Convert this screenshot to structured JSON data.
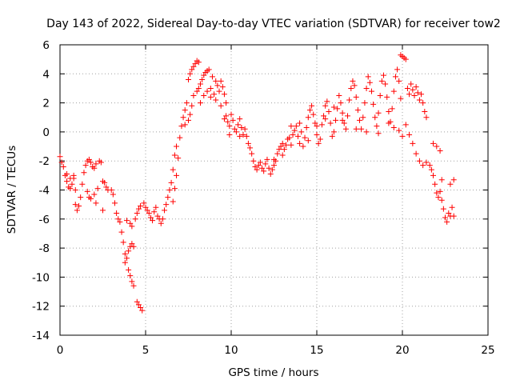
{
  "chart_data": {
    "type": "scatter",
    "title": "Day 143 of 2022, Sidereal Day-to-day VTEC variation (SDTVAR) for receiver tow2",
    "xlabel": "GPS time / hours",
    "ylabel": "SDTVAR / TECUs",
    "xlim": [
      0,
      25
    ],
    "ylim": [
      -14,
      6
    ],
    "xticks": [
      0,
      5,
      10,
      15,
      20,
      25
    ],
    "yticks": [
      -14,
      -12,
      -10,
      -8,
      -6,
      -4,
      -2,
      0,
      2,
      4,
      6
    ],
    "grid": true,
    "marker": "plus",
    "color": "#ff0000",
    "series": [
      {
        "name": "SDTVAR",
        "points": [
          [
            0.0,
            -1.7
          ],
          [
            0.1,
            -2.1
          ],
          [
            0.2,
            -2.4
          ],
          [
            0.3,
            -3.0
          ],
          [
            0.4,
            -3.4
          ],
          [
            0.5,
            -3.8
          ],
          [
            0.6,
            -3.9
          ],
          [
            0.7,
            -3.6
          ],
          [
            0.8,
            -3.2
          ],
          [
            0.9,
            -4.0
          ],
          [
            0.4,
            -2.9
          ],
          [
            0.6,
            -3.2
          ],
          [
            0.8,
            -3.0
          ],
          [
            0.9,
            -5.0
          ],
          [
            1.0,
            -5.4
          ],
          [
            1.1,
            -5.1
          ],
          [
            1.2,
            -4.5
          ],
          [
            1.3,
            -3.6
          ],
          [
            1.4,
            -2.8
          ],
          [
            1.5,
            -2.3
          ],
          [
            1.6,
            -2.0
          ],
          [
            1.7,
            -1.9
          ],
          [
            1.8,
            -2.1
          ],
          [
            1.9,
            -2.4
          ],
          [
            1.6,
            -4.1
          ],
          [
            1.7,
            -4.5
          ],
          [
            1.8,
            -4.6
          ],
          [
            2.0,
            -4.3
          ],
          [
            2.1,
            -4.9
          ],
          [
            2.2,
            -3.9
          ],
          [
            2.0,
            -2.5
          ],
          [
            2.1,
            -2.2
          ],
          [
            2.3,
            -2.0
          ],
          [
            2.4,
            -2.1
          ],
          [
            2.5,
            -3.4
          ],
          [
            2.6,
            -3.5
          ],
          [
            2.7,
            -3.8
          ],
          [
            2.8,
            -4.0
          ],
          [
            2.5,
            -5.4
          ],
          [
            3.0,
            -4.0
          ],
          [
            3.1,
            -4.3
          ],
          [
            3.2,
            -4.9
          ],
          [
            3.3,
            -5.6
          ],
          [
            3.4,
            -6.0
          ],
          [
            3.5,
            -6.2
          ],
          [
            3.6,
            -6.9
          ],
          [
            3.7,
            -7.6
          ],
          [
            3.8,
            -8.4
          ],
          [
            3.8,
            -9.0
          ],
          [
            3.9,
            -8.7
          ],
          [
            4.0,
            -8.2
          ],
          [
            4.1,
            -7.9
          ],
          [
            4.2,
            -7.7
          ],
          [
            4.3,
            -7.9
          ],
          [
            3.9,
            -6.1
          ],
          [
            4.1,
            -6.3
          ],
          [
            4.2,
            -6.5
          ],
          [
            4.4,
            -6.0
          ],
          [
            4.0,
            -9.5
          ],
          [
            4.1,
            -9.9
          ],
          [
            4.2,
            -10.3
          ],
          [
            4.3,
            -10.6
          ],
          [
            4.5,
            -11.7
          ],
          [
            4.6,
            -11.9
          ],
          [
            4.7,
            -12.1
          ],
          [
            4.8,
            -12.3
          ],
          [
            4.5,
            -5.6
          ],
          [
            4.6,
            -5.3
          ],
          [
            4.7,
            -5.1
          ],
          [
            4.9,
            -4.9
          ],
          [
            5.0,
            -5.2
          ],
          [
            5.1,
            -5.4
          ],
          [
            5.2,
            -5.6
          ],
          [
            5.3,
            -5.9
          ],
          [
            5.4,
            -6.1
          ],
          [
            5.5,
            -5.5
          ],
          [
            5.6,
            -5.2
          ],
          [
            5.7,
            -5.8
          ],
          [
            5.8,
            -6.0
          ],
          [
            5.9,
            -6.3
          ],
          [
            6.0,
            -6.0
          ],
          [
            6.1,
            -5.4
          ],
          [
            6.2,
            -5.0
          ],
          [
            6.3,
            -4.5
          ],
          [
            6.4,
            -4.0
          ],
          [
            6.5,
            -3.5
          ],
          [
            6.6,
            -2.6
          ],
          [
            6.7,
            -1.6
          ],
          [
            6.8,
            -1.0
          ],
          [
            6.9,
            -1.8
          ],
          [
            6.6,
            -4.8
          ],
          [
            6.7,
            -3.9
          ],
          [
            6.8,
            -3.0
          ],
          [
            7.0,
            -0.4
          ],
          [
            7.1,
            0.4
          ],
          [
            7.2,
            1.0
          ],
          [
            7.3,
            1.5
          ],
          [
            7.4,
            2.0
          ],
          [
            7.3,
            0.5
          ],
          [
            7.5,
            0.8
          ],
          [
            7.6,
            1.2
          ],
          [
            7.7,
            1.8
          ],
          [
            7.8,
            2.5
          ],
          [
            7.5,
            3.6
          ],
          [
            7.6,
            4.0
          ],
          [
            7.7,
            4.3
          ],
          [
            7.8,
            4.5
          ],
          [
            7.9,
            4.7
          ],
          [
            8.0,
            4.9
          ],
          [
            8.1,
            4.8
          ],
          [
            8.0,
            2.8
          ],
          [
            8.1,
            3.0
          ],
          [
            8.2,
            3.3
          ],
          [
            8.3,
            3.6
          ],
          [
            8.4,
            3.9
          ],
          [
            8.5,
            4.1
          ],
          [
            8.6,
            4.2
          ],
          [
            8.7,
            4.3
          ],
          [
            8.2,
            2.0
          ],
          [
            8.4,
            2.5
          ],
          [
            8.6,
            2.8
          ],
          [
            8.8,
            3.0
          ],
          [
            9.0,
            2.6
          ],
          [
            9.1,
            2.2
          ],
          [
            8.9,
            3.8
          ],
          [
            9.1,
            3.5
          ],
          [
            9.2,
            3.2
          ],
          [
            9.3,
            2.8
          ],
          [
            9.4,
            3.5
          ],
          [
            9.5,
            3.1
          ],
          [
            9.6,
            2.6
          ],
          [
            9.7,
            2.0
          ],
          [
            9.6,
            0.9
          ],
          [
            9.7,
            1.1
          ],
          [
            9.8,
            0.7
          ],
          [
            9.9,
            0.4
          ],
          [
            10.0,
            1.2
          ],
          [
            10.1,
            0.8
          ],
          [
            10.2,
            0.2
          ],
          [
            10.3,
            0.0
          ],
          [
            10.4,
            0.5
          ],
          [
            10.5,
            0.9
          ],
          [
            10.6,
            0.3
          ],
          [
            10.7,
            -0.2
          ],
          [
            10.8,
            0.2
          ],
          [
            10.9,
            -0.3
          ],
          [
            11.0,
            -0.8
          ],
          [
            11.1,
            -1.1
          ],
          [
            11.2,
            -1.5
          ],
          [
            11.3,
            -2.0
          ],
          [
            11.4,
            -2.4
          ],
          [
            11.5,
            -2.6
          ],
          [
            11.6,
            -2.3
          ],
          [
            11.7,
            -2.1
          ],
          [
            11.8,
            -2.5
          ],
          [
            11.9,
            -2.7
          ],
          [
            12.0,
            -2.2
          ],
          [
            12.1,
            -1.9
          ],
          [
            12.2,
            -2.5
          ],
          [
            12.3,
            -2.9
          ],
          [
            12.4,
            -2.6
          ],
          [
            12.5,
            -2.3
          ],
          [
            12.6,
            -2.0
          ],
          [
            12.7,
            -1.5
          ],
          [
            12.8,
            -1.2
          ],
          [
            12.9,
            -1.0
          ],
          [
            13.0,
            -0.8
          ],
          [
            13.1,
            -1.2
          ],
          [
            13.2,
            -0.9
          ],
          [
            13.3,
            -0.5
          ],
          [
            13.4,
            -0.4
          ],
          [
            13.5,
            -0.9
          ],
          [
            13.6,
            -0.2
          ],
          [
            13.7,
            0.1
          ],
          [
            13.8,
            0.4
          ],
          [
            13.9,
            -0.3
          ],
          [
            14.0,
            -0.8
          ],
          [
            14.1,
            0.0
          ],
          [
            14.2,
            -1.0
          ],
          [
            14.3,
            -0.4
          ],
          [
            14.4,
            0.3
          ],
          [
            14.5,
            1.0
          ],
          [
            14.6,
            1.5
          ],
          [
            14.7,
            1.8
          ],
          [
            14.8,
            1.2
          ],
          [
            14.9,
            0.6
          ],
          [
            15.0,
            -0.2
          ],
          [
            15.1,
            -0.8
          ],
          [
            15.2,
            -0.5
          ],
          [
            15.3,
            0.5
          ],
          [
            15.4,
            1.1
          ],
          [
            15.5,
            1.8
          ],
          [
            15.6,
            2.1
          ],
          [
            15.7,
            1.4
          ],
          [
            15.8,
            0.6
          ],
          [
            15.9,
            -0.3
          ],
          [
            16.0,
            0.0
          ],
          [
            16.1,
            0.8
          ],
          [
            16.2,
            1.6
          ],
          [
            16.3,
            2.5
          ],
          [
            16.4,
            2.0
          ],
          [
            16.5,
            1.3
          ],
          [
            16.6,
            0.6
          ],
          [
            16.7,
            0.2
          ],
          [
            16.8,
            1.1
          ],
          [
            16.9,
            2.2
          ],
          [
            17.0,
            3.0
          ],
          [
            17.1,
            3.5
          ],
          [
            17.2,
            3.2
          ],
          [
            17.3,
            2.4
          ],
          [
            17.4,
            1.5
          ],
          [
            17.5,
            0.8
          ],
          [
            17.6,
            0.2
          ],
          [
            17.7,
            1.0
          ],
          [
            17.8,
            2.0
          ],
          [
            17.9,
            3.0
          ],
          [
            18.0,
            3.8
          ],
          [
            18.1,
            3.4
          ],
          [
            18.2,
            2.8
          ],
          [
            18.3,
            1.9
          ],
          [
            18.4,
            1.0
          ],
          [
            18.5,
            0.4
          ],
          [
            18.6,
            1.3
          ],
          [
            18.7,
            2.5
          ],
          [
            18.8,
            3.5
          ],
          [
            18.9,
            3.9
          ],
          [
            19.0,
            3.3
          ],
          [
            19.1,
            2.4
          ],
          [
            19.2,
            1.4
          ],
          [
            19.3,
            0.7
          ],
          [
            19.4,
            1.6
          ],
          [
            19.5,
            2.8
          ],
          [
            19.6,
            3.8
          ],
          [
            19.7,
            4.3
          ],
          [
            19.8,
            3.5
          ],
          [
            19.9,
            2.3
          ],
          [
            20.0,
            5.2
          ],
          [
            20.1,
            5.1
          ],
          [
            20.2,
            5.0
          ],
          [
            19.9,
            5.3
          ],
          [
            20.3,
            3.0
          ],
          [
            20.4,
            2.6
          ],
          [
            20.5,
            3.3
          ],
          [
            20.6,
            2.9
          ],
          [
            20.7,
            2.5
          ],
          [
            20.8,
            3.1
          ],
          [
            20.9,
            2.7
          ],
          [
            21.0,
            2.2
          ],
          [
            21.1,
            2.6
          ],
          [
            21.2,
            2.0
          ],
          [
            21.3,
            1.4
          ],
          [
            21.4,
            1.0
          ],
          [
            20.2,
            0.5
          ],
          [
            20.4,
            -0.2
          ],
          [
            20.6,
            -0.8
          ],
          [
            20.8,
            -1.5
          ],
          [
            21.0,
            -2.0
          ],
          [
            21.2,
            -2.3
          ],
          [
            21.4,
            -2.1
          ],
          [
            21.6,
            -2.3
          ],
          [
            21.7,
            -2.6
          ],
          [
            21.8,
            -3.0
          ],
          [
            21.9,
            -3.6
          ],
          [
            22.0,
            -4.2
          ],
          [
            22.1,
            -4.5
          ],
          [
            22.2,
            -4.1
          ],
          [
            22.3,
            -3.3
          ],
          [
            21.8,
            -0.8
          ],
          [
            22.0,
            -1.0
          ],
          [
            22.2,
            -1.3
          ],
          [
            22.3,
            -4.7
          ],
          [
            22.4,
            -5.3
          ],
          [
            22.5,
            -5.9
          ],
          [
            22.6,
            -6.2
          ],
          [
            22.7,
            -5.6
          ],
          [
            22.8,
            -5.8
          ],
          [
            22.9,
            -5.2
          ],
          [
            23.0,
            -5.8
          ],
          [
            22.8,
            -3.6
          ],
          [
            23.0,
            -3.3
          ],
          [
            19.2,
            0.6
          ],
          [
            19.5,
            0.3
          ],
          [
            19.8,
            0.1
          ],
          [
            20.0,
            -0.3
          ],
          [
            18.6,
            -0.1
          ],
          [
            17.9,
            0.0
          ],
          [
            17.3,
            0.2
          ],
          [
            16.5,
            0.8
          ],
          [
            16.0,
            1.7
          ],
          [
            15.5,
            0.9
          ],
          [
            15.0,
            0.4
          ],
          [
            14.5,
            -0.6
          ],
          [
            14.0,
            0.6
          ],
          [
            13.5,
            0.4
          ],
          [
            13.0,
            -1.6
          ],
          [
            12.5,
            -1.9
          ],
          [
            9.4,
            1.8
          ],
          [
            8.8,
            2.4
          ],
          [
            9.9,
            -0.2
          ],
          [
            10.5,
            -0.3
          ]
        ]
      }
    ]
  }
}
